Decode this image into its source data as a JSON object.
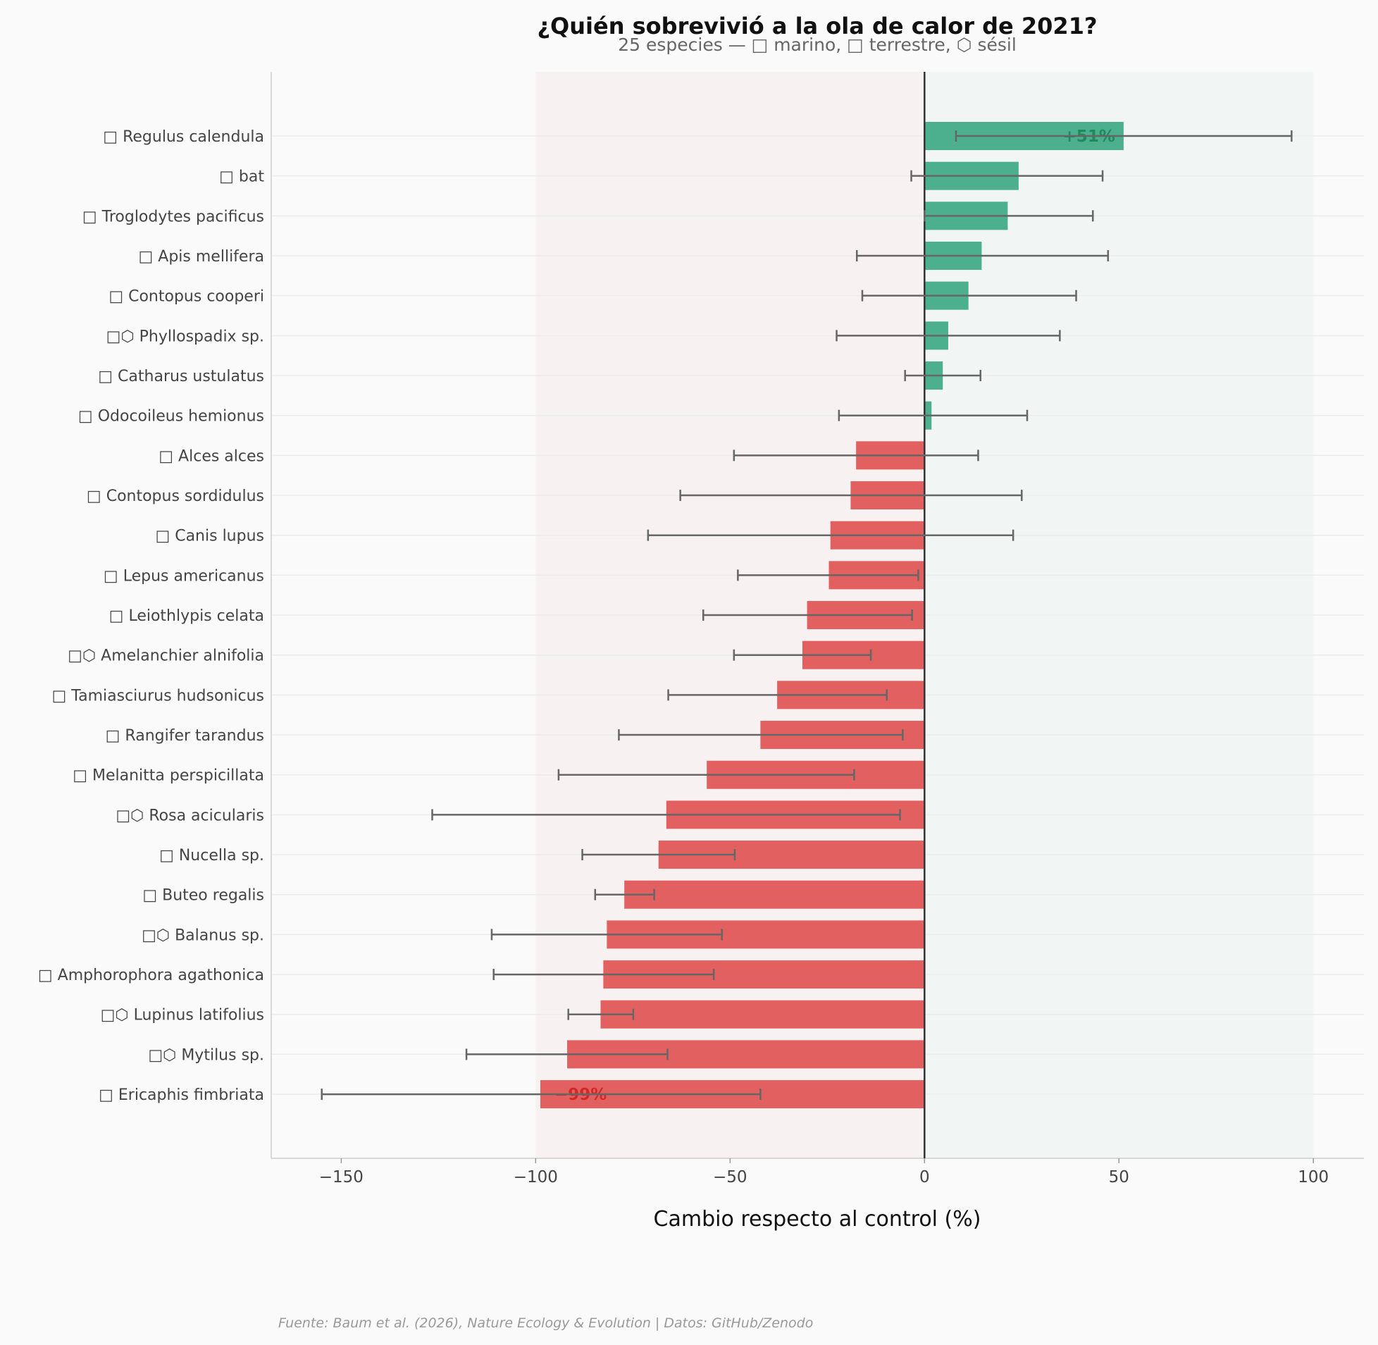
{
  "chart_data": {
    "type": "bar",
    "orientation": "horizontal",
    "title": "¿Quién sobrevivió a la ola de calor de 2021?",
    "subtitle": "25 especies — □ marino, □ terrestre, ⬡ sésil",
    "xlabel": "Cambio respecto al control (%)",
    "ylabel": "",
    "xlim": [
      -168,
      113
    ],
    "xticks": [
      -150,
      -100,
      -50,
      0,
      50,
      100
    ],
    "xtick_labels": [
      "−150",
      "−100",
      "−50",
      "0",
      "50",
      "100"
    ],
    "grid": "horizontal",
    "shaded_regions": [
      {
        "from": -100,
        "to": 0,
        "color": "#f7f1f1"
      },
      {
        "from": 0,
        "to": 100,
        "color": "#f1f5f3"
      }
    ],
    "colors": {
      "positive": "#4caf8e",
      "negative": "#e36060",
      "errorbar": "#666666",
      "positive_label": "#1e8a5e",
      "negative_label": "#d42828"
    },
    "categories": [
      "□ Regulus calendula",
      "□ bat",
      "□ Troglodytes pacificus",
      "□ Apis mellifera",
      "□ Contopus cooperi",
      "□⬡ Phyllospadix sp.",
      "□ Catharus ustulatus",
      "□ Odocoileus hemionus",
      "□ Alces alces",
      "□ Contopus sordidulus",
      "□ Canis lupus",
      "□ Lepus americanus",
      "□ Leiothlypis celata",
      "□⬡ Amelanchier alnifolia",
      "□ Tamiasciurus hudsonicus",
      "□ Rangifer tarandus",
      "□ Melanitta perspicillata",
      "□⬡ Rosa acicularis",
      "□ Nucella sp.",
      "□ Buteo regalis",
      "□⬡ Balanus sp.",
      "□ Amphorophora agathonica",
      "□⬡ Lupinus latifolius",
      "□⬡ Mytilus sp.",
      "□ Ericaphis fimbriata"
    ],
    "values": [
      51.2,
      24.2,
      21.4,
      14.7,
      11.3,
      6.1,
      4.7,
      1.8,
      -17.6,
      -19.0,
      -24.2,
      -24.6,
      -30.2,
      -31.4,
      -37.9,
      -42.2,
      -56.0,
      -66.4,
      -68.4,
      -77.2,
      -81.7,
      -82.6,
      -83.3,
      -91.9,
      -98.8
    ],
    "error_low": [
      8.1,
      -3.4,
      0.0,
      -17.4,
      -16.0,
      -22.6,
      -5.0,
      -22.0,
      -49.0,
      -62.8,
      -71.1,
      -48.0,
      -56.9,
      -49.0,
      -65.9,
      -78.6,
      -94.1,
      -126.6,
      -88.0,
      -84.7,
      -111.3,
      -110.8,
      -91.6,
      -117.8,
      -155.0
    ],
    "error_high": [
      94.4,
      45.8,
      43.3,
      47.2,
      39.0,
      34.8,
      14.4,
      26.4,
      13.8,
      25.0,
      22.8,
      -1.6,
      -3.2,
      -13.8,
      -9.7,
      -5.6,
      -18.1,
      -6.3,
      -48.8,
      -69.5,
      -52.1,
      -54.2,
      -74.9,
      -66.1,
      -42.2
    ],
    "annotations": [
      {
        "index": 0,
        "text": "+51%"
      },
      {
        "index": 24,
        "text": "−99%"
      }
    ],
    "source": "Fuente: Baum et al. (2026), Nature Ecology & Evolution | Datos: GitHub/Zenodo"
  }
}
